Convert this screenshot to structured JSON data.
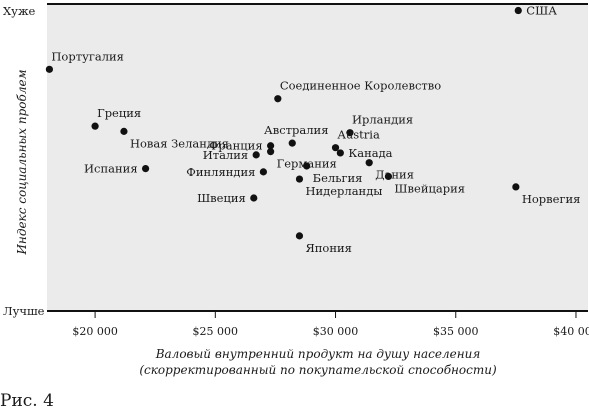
{
  "caption": "Рис. 4",
  "chart_data": {
    "type": "scatter",
    "xlabel_line1": "Валовый внутренний продукт на душу населения",
    "xlabel_line2": "(скорректированный по покупательской способности)",
    "ylabel": "Индекс социальных проблем",
    "y_top_label": "Хуже",
    "y_bottom_label": "Лучше",
    "xlim": [
      18000,
      40500
    ],
    "ylim": [
      -2.1,
      2.6
    ],
    "x_ticks": [
      20000,
      25000,
      30000,
      35000,
      40000
    ],
    "x_tick_labels": [
      "$20 000",
      "$25 000",
      "$30 000",
      "$35 000",
      "$40 000"
    ],
    "grid": false,
    "background": "#ebebeb",
    "point_color": "#111111",
    "points": [
      {
        "label": "США",
        "x": 37600,
        "y": 2.5,
        "label_pos": "right"
      },
      {
        "label": "Португалия",
        "x": 18100,
        "y": 1.6,
        "label_pos": "above-right"
      },
      {
        "label": "Соединенное Королевство",
        "x": 27600,
        "y": 1.15,
        "label_pos": "above-right"
      },
      {
        "label": "Греция",
        "x": 20000,
        "y": 0.73,
        "label_pos": "above-right"
      },
      {
        "label": "Новая Зеландия",
        "x": 21200,
        "y": 0.65,
        "label_pos": "below-right"
      },
      {
        "label": "Ирландия",
        "x": 30600,
        "y": 0.63,
        "label_pos": "above-right"
      },
      {
        "label": "Австралия",
        "x": 28200,
        "y": 0.47,
        "label_pos": "above-left"
      },
      {
        "label": "Франция",
        "x": 27300,
        "y": 0.43,
        "label_pos": "left"
      },
      {
        "label": "Austria",
        "x": 30000,
        "y": 0.4,
        "label_pos": "above-right"
      },
      {
        "label": "Канада",
        "x": 30200,
        "y": 0.32,
        "label_pos": "right"
      },
      {
        "label": "Италия",
        "x": 26700,
        "y": 0.29,
        "label_pos": "left"
      },
      {
        "label": "Германия",
        "x": 27300,
        "y": 0.34,
        "label_pos": "below-right"
      },
      {
        "label": "Дания",
        "x": 31400,
        "y": 0.17,
        "label_pos": "below-right"
      },
      {
        "label": "Бельгия",
        "x": 28800,
        "y": 0.12,
        "label_pos": "below-right"
      },
      {
        "label": "Испания",
        "x": 22100,
        "y": 0.08,
        "label_pos": "left"
      },
      {
        "label": "Финляндия",
        "x": 27000,
        "y": 0.03,
        "label_pos": "left"
      },
      {
        "label": "Швейцария",
        "x": 32200,
        "y": -0.04,
        "label_pos": "below-right"
      },
      {
        "label": "Нидерланды",
        "x": 28500,
        "y": -0.08,
        "label_pos": "below-right"
      },
      {
        "label": "Норвегия",
        "x": 37500,
        "y": -0.2,
        "label_pos": "below-right"
      },
      {
        "label": "Швеция",
        "x": 26600,
        "y": -0.37,
        "label_pos": "left"
      },
      {
        "label": "Япония",
        "x": 28500,
        "y": -0.95,
        "label_pos": "below-right"
      }
    ]
  }
}
